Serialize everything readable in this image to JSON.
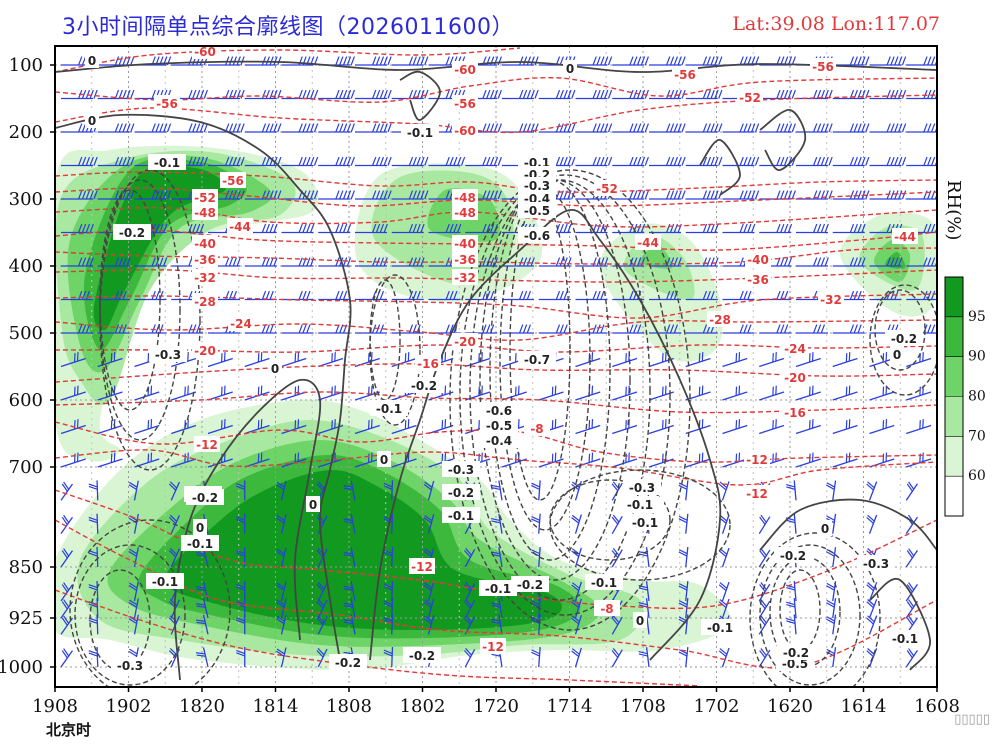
{
  "header": {
    "title": "3小时间隔单点综合廓线图（2026011600）",
    "coords": "Lat:39.08  Lon:117.07",
    "timezone_label": "北京时",
    "colorbar_title": "RH(%)",
    "watermark": "▯▯▯▯▯"
  },
  "colors": {
    "title": "#2b2bd6",
    "temperature": "#e03a3a",
    "omega": "#444444",
    "wind": "#2a3fe0",
    "rh_60": "#d9f5d4",
    "rh_70": "#a8e8a0",
    "rh_80": "#6fd468",
    "rh_90": "#3cb83c",
    "rh_95": "#129a20"
  },
  "chart_data": {
    "type": "heatmap",
    "title": "3小时间隔单点综合廓线图（2026011600）",
    "xlabel": "北京时",
    "ylabel": "",
    "x_ticks": [
      "1908",
      "1902",
      "1820",
      "1814",
      "1808",
      "1802",
      "1720",
      "1714",
      "1708",
      "1702",
      "1620",
      "1614",
      "1608"
    ],
    "y_ticks": [
      100,
      200,
      300,
      400,
      500,
      600,
      700,
      850,
      925,
      1000
    ],
    "y_range": [
      1000,
      100
    ],
    "colorbar": {
      "title": "RH(%)",
      "levels": [
        60,
        70,
        80,
        90,
        95
      ]
    },
    "rh_regions": [
      {
        "name": "upper-left",
        "levels": [
          60,
          70,
          80,
          90,
          95
        ],
        "points": [
          [
            "1906",
            330
          ],
          [
            "1904",
            460
          ],
          [
            "1902",
            560
          ],
          [
            "1820",
            330
          ],
          [
            "1817",
            300
          ]
        ]
      },
      {
        "name": "upper-mid",
        "levels": [
          60,
          70,
          80
        ],
        "points": [
          [
            "1802",
            300
          ],
          [
            "1720",
            300
          ],
          [
            "1718",
            420
          ],
          [
            "1800",
            420
          ]
        ]
      },
      {
        "name": "mid-right",
        "levels": [
          60,
          70,
          80
        ],
        "points": [
          [
            "1708",
            400
          ],
          [
            "1704",
            440
          ]
        ]
      },
      {
        "name": "far-right",
        "levels": [
          60,
          70,
          80,
          90
        ],
        "points": [
          [
            "1612",
            400
          ]
        ]
      },
      {
        "name": "lower-core",
        "levels": [
          60,
          70,
          80,
          90,
          95
        ],
        "points": [
          [
            "1820",
            800
          ],
          [
            "1814",
            760
          ],
          [
            "1808",
            800
          ],
          [
            "1802",
            850
          ],
          [
            "1720",
            900
          ],
          [
            "1714",
            925
          ]
        ]
      }
    ],
    "temperature_labels": [
      "-60",
      "-60",
      "-60",
      "-56",
      "-56",
      "-56",
      "-56",
      "-56",
      "-52",
      "-52",
      "-52",
      "-48",
      "-48",
      "-48",
      "-44",
      "-44",
      "-44",
      "-40",
      "-40",
      "-40",
      "-36",
      "-36",
      "-36",
      "-32",
      "-32",
      "-32",
      "-28",
      "-28",
      "-24",
      "-24",
      "-20",
      "-20",
      "-20",
      "-16",
      "-16",
      "-12",
      "-12",
      "-12",
      "-12",
      "-12",
      "-8",
      "-8",
      "-12"
    ],
    "omega_labels": [
      "0",
      "0",
      "0",
      "-0.1",
      "-0.2",
      "-0.3",
      "0",
      "-0.1",
      "-0.2",
      "-0.1",
      "-0.2",
      "-0.3",
      "-0.4",
      "-0.5",
      "-0.6",
      "-0.7",
      "-0.6",
      "-0.5",
      "-0.4",
      "-0.3",
      "-0.2",
      "-0.1",
      "0",
      "-0.1",
      "0",
      "0",
      "-0.1",
      "-0.1",
      "-0.3",
      "-0.2",
      "-0.1",
      "-0.1",
      "-0.2",
      "-0.1",
      "0",
      "-0.2",
      "-0.1",
      "-0.2",
      "-0.3",
      "-0.5",
      "-0.2",
      "-0.1",
      "-0.2",
      "0",
      "0",
      "-0.2",
      "-0.1",
      "-0.3",
      "-0.2",
      "-0.1"
    ],
    "wind_levels": [
      100,
      150,
      200,
      250,
      300,
      350,
      400,
      450,
      500,
      550,
      600,
      650,
      700,
      750,
      800,
      850,
      900,
      925,
      950,
      1000
    ],
    "grid": true,
    "legend": "right"
  }
}
